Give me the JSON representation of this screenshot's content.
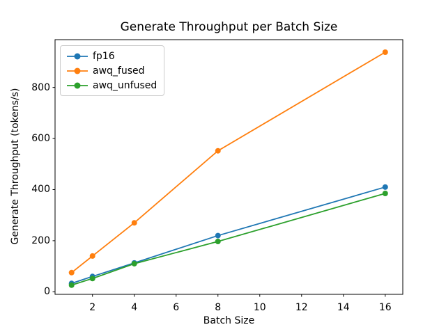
{
  "chart_data": {
    "type": "line",
    "title": "Generate Throughput per Batch Size",
    "xlabel": "Batch Size",
    "ylabel": "Generate Throughput (tokens/s)",
    "x": [
      1,
      2,
      4,
      8,
      16
    ],
    "series": [
      {
        "name": "fp16",
        "color": "#1f77b4",
        "values": [
          33,
          60,
          113,
          220,
          410
        ]
      },
      {
        "name": "awq_fused",
        "color": "#ff7f0e",
        "values": [
          75,
          140,
          270,
          552,
          938
        ]
      },
      {
        "name": "awq_unfused",
        "color": "#2ca02c",
        "values": [
          26,
          52,
          110,
          197,
          385
        ]
      }
    ],
    "xlim": [
      0.21,
      16.84
    ],
    "ylim": [
      -10,
      987
    ],
    "xticks": [
      2,
      4,
      6,
      8,
      10,
      12,
      14,
      16
    ],
    "yticks": [
      0,
      200,
      400,
      600,
      800
    ],
    "grid": false,
    "legend_position": "upper left",
    "marker": "o",
    "spine_color": "#000000",
    "background_color": "#ffffff"
  }
}
